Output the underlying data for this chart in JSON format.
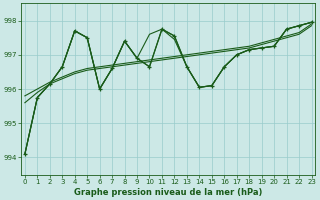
{
  "background_color": "#cce8e6",
  "grid_color": "#99cccc",
  "line_color": "#1a5c1a",
  "xlabel": "Graphe pression niveau de la mer (hPa)",
  "ylim": [
    993.5,
    998.5
  ],
  "yticks": [
    994,
    995,
    996,
    997,
    998
  ],
  "xlim": [
    0,
    23
  ],
  "xticks": [
    0,
    1,
    2,
    3,
    4,
    5,
    6,
    7,
    8,
    9,
    10,
    11,
    12,
    13,
    14,
    15,
    16,
    17,
    18,
    19,
    20,
    21,
    22,
    23
  ],
  "series_noisy": [
    994.1,
    995.75,
    996.15,
    996.65,
    997.2,
    997.5,
    996.0,
    996.6,
    996.65,
    996.7,
    997.5,
    997.75,
    997.55,
    996.65,
    996.05,
    996.1,
    996.65,
    997.0,
    997.15,
    997.2,
    997.25,
    997.75,
    997.85,
    997.95
  ],
  "series_smooth1": [
    994.1,
    995.75,
    996.15,
    996.65,
    997.7,
    997.5,
    996.0,
    996.6,
    997.4,
    996.9,
    996.65,
    997.75,
    997.55,
    996.65,
    996.05,
    996.1,
    996.65,
    997.0,
    997.15,
    997.2,
    997.25,
    997.75,
    997.85,
    997.95
  ],
  "series_smooth2": [
    994.1,
    995.75,
    996.15,
    996.65,
    997.7,
    997.5,
    996.0,
    996.6,
    997.4,
    996.9,
    997.6,
    997.75,
    997.45,
    996.65,
    996.05,
    996.1,
    996.65,
    997.0,
    997.15,
    997.2,
    997.25,
    997.75,
    997.85,
    997.95
  ],
  "series_trend1": [
    995.8,
    996.0,
    996.2,
    996.35,
    996.5,
    996.6,
    996.65,
    996.7,
    996.75,
    996.8,
    996.85,
    996.9,
    996.95,
    997.0,
    997.05,
    997.1,
    997.15,
    997.2,
    997.25,
    997.35,
    997.45,
    997.55,
    997.65,
    997.9
  ],
  "series_trend2": [
    995.6,
    995.9,
    996.15,
    996.3,
    996.45,
    996.55,
    996.6,
    996.65,
    996.7,
    996.75,
    996.8,
    996.85,
    996.9,
    996.95,
    997.0,
    997.05,
    997.1,
    997.15,
    997.2,
    997.3,
    997.4,
    997.5,
    997.6,
    997.85
  ],
  "main_series_x": [
    0,
    1,
    2,
    3,
    4,
    5,
    6,
    7,
    8,
    9,
    10,
    11,
    12,
    13,
    14,
    15,
    16,
    17,
    18,
    19,
    20,
    21,
    22,
    23
  ],
  "main_series_y": [
    994.1,
    995.75,
    996.15,
    996.65,
    997.7,
    997.5,
    996.0,
    996.6,
    997.4,
    996.9,
    996.65,
    997.75,
    997.55,
    996.65,
    996.05,
    996.1,
    996.65,
    997.0,
    997.15,
    997.2,
    997.25,
    997.75,
    997.85,
    997.95
  ]
}
